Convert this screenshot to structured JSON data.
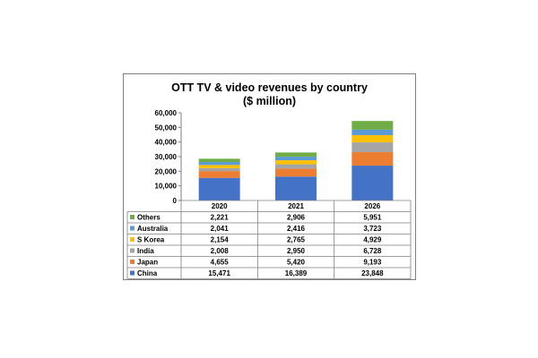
{
  "chart_data": {
    "type": "bar",
    "stacked": true,
    "title": "OTT TV & video revenues by country",
    "subtitle": "($ million)",
    "categories": [
      "2020",
      "2021",
      "2026"
    ],
    "ylim": [
      0,
      60000
    ],
    "yticks": [
      "60,000",
      "50,000",
      "40,000",
      "30,000",
      "20,000",
      "10,000",
      "0"
    ],
    "grid": false,
    "legend": "data-table-left",
    "series": [
      {
        "name": "China",
        "color": "#4472c4",
        "values": [
          15471,
          16389,
          23848
        ],
        "labels": [
          "15,471",
          "16,389",
          "23,848"
        ]
      },
      {
        "name": "Japan",
        "color": "#ed7d31",
        "values": [
          4655,
          5420,
          9193
        ],
        "labels": [
          "4,655",
          "5,420",
          "9,193"
        ]
      },
      {
        "name": "India",
        "color": "#a5a5a5",
        "values": [
          2008,
          2950,
          6728
        ],
        "labels": [
          "2,008",
          "2,950",
          "6,728"
        ]
      },
      {
        "name": "S Korea",
        "color": "#ffc000",
        "values": [
          2154,
          2765,
          4929
        ],
        "labels": [
          "2,154",
          "2,765",
          "4,929"
        ]
      },
      {
        "name": "Australia",
        "color": "#5b9bd5",
        "values": [
          2041,
          2416,
          3723
        ],
        "labels": [
          "2,041",
          "2,416",
          "3,723"
        ]
      },
      {
        "name": "Others",
        "color": "#70ad47",
        "values": [
          2221,
          2906,
          5951
        ],
        "labels": [
          "2,221",
          "2,906",
          "5,951"
        ]
      }
    ]
  }
}
